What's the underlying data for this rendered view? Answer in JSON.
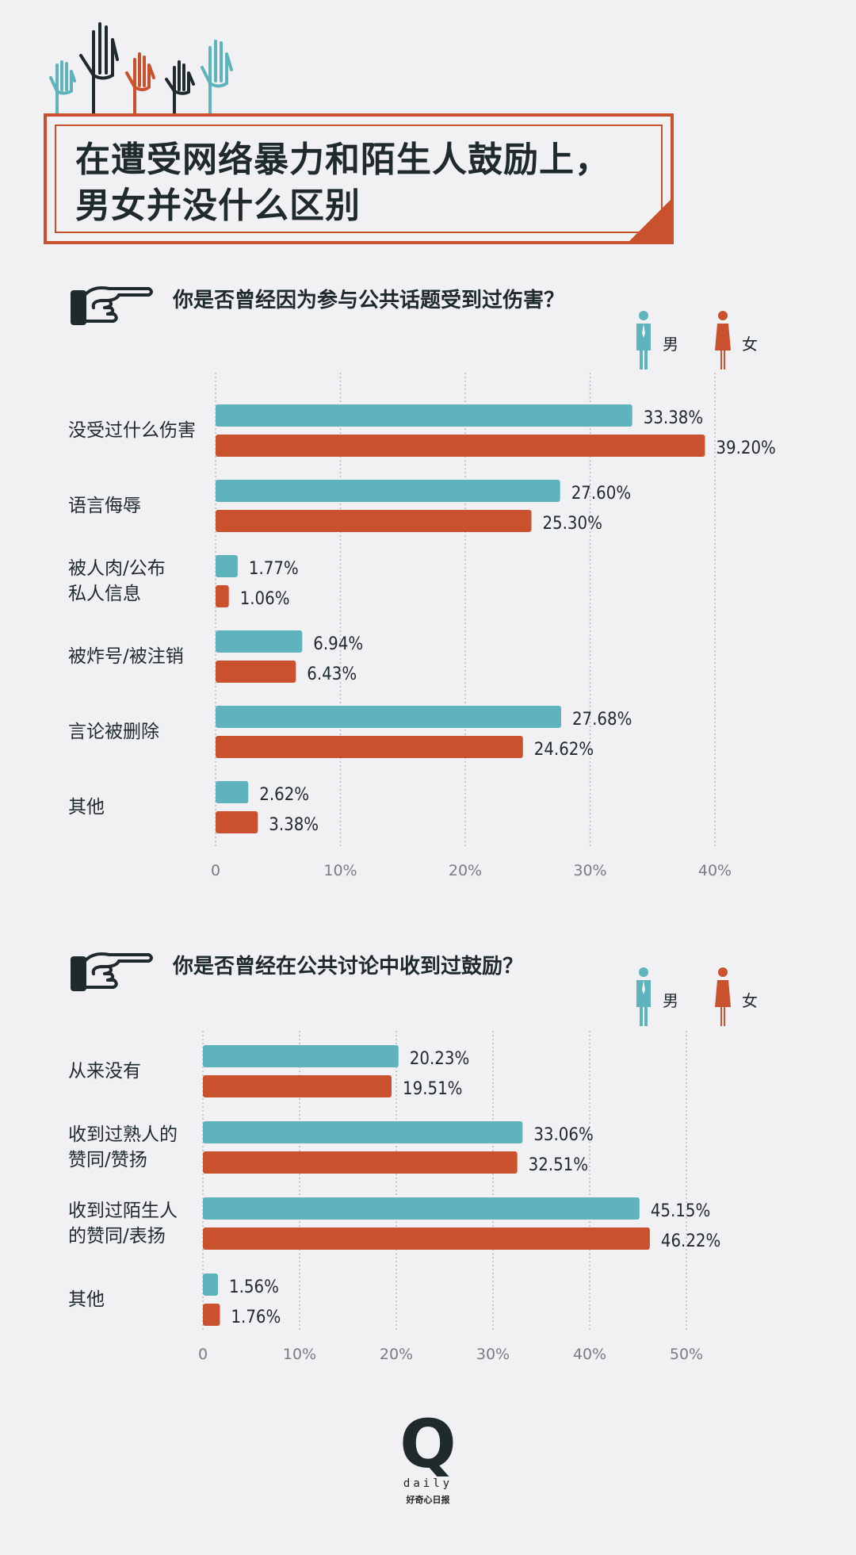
{
  "title": {
    "line1": "在遭受网络暴力和陌生人鼓励上，",
    "line2": "男女并没什么区别"
  },
  "colors": {
    "male": "#5fb3bc",
    "female": "#c9512d",
    "grid": "#b9b9c0",
    "text": "#1f2a2b"
  },
  "legend": {
    "male_label": "男",
    "female_label": "女"
  },
  "chart_data": [
    {
      "type": "bar",
      "orientation": "horizontal",
      "title": "你是否曾经因为参与公共话题受到过伤害？",
      "categories": [
        "没受过什么伤害",
        "语言侮辱",
        "被人肉/公布\n私人信息",
        "被炸号/被注销",
        "言论被删除",
        "其他"
      ],
      "series": [
        {
          "name": "男",
          "values": [
            33.38,
            27.6,
            1.77,
            6.94,
            27.68,
            2.62
          ],
          "labels": [
            "33.38%",
            "27.60%",
            "1.77%",
            "6.94%",
            "27.68%",
            "2.62%"
          ]
        },
        {
          "name": "女",
          "values": [
            39.2,
            25.3,
            1.06,
            6.43,
            24.62,
            3.38
          ],
          "labels": [
            "39.20%",
            "25.30%",
            "1.06%",
            "6.43%",
            "24.62%",
            "3.38%"
          ]
        }
      ],
      "xlim": [
        0,
        40
      ],
      "ticks": [
        0,
        10,
        20,
        30,
        40
      ],
      "tick_labels": [
        "0",
        "10%",
        "20%",
        "30%",
        "40%"
      ],
      "grid": true
    },
    {
      "type": "bar",
      "orientation": "horizontal",
      "title": "你是否曾经在公共讨论中收到过鼓励？",
      "categories": [
        "从来没有",
        "收到过熟人的\n赞同/赞扬",
        "收到过陌生人\n的赞同/表扬",
        "其他"
      ],
      "series": [
        {
          "name": "男",
          "values": [
            20.23,
            33.06,
            45.15,
            1.56
          ],
          "labels": [
            "20.23%",
            "33.06%",
            "45.15%",
            "1.56%"
          ]
        },
        {
          "name": "女",
          "values": [
            19.51,
            32.51,
            46.22,
            1.76
          ],
          "labels": [
            "19.51%",
            "32.51%",
            "46.22%",
            "1.76%"
          ]
        }
      ],
      "xlim": [
        0,
        50
      ],
      "ticks": [
        0,
        10,
        20,
        30,
        40,
        50
      ],
      "tick_labels": [
        "0",
        "10%",
        "20%",
        "30%",
        "40%",
        "50%"
      ],
      "grid": true
    }
  ],
  "logo": {
    "mark": "Q",
    "word": "daily",
    "tagline": "好奇心日报"
  }
}
